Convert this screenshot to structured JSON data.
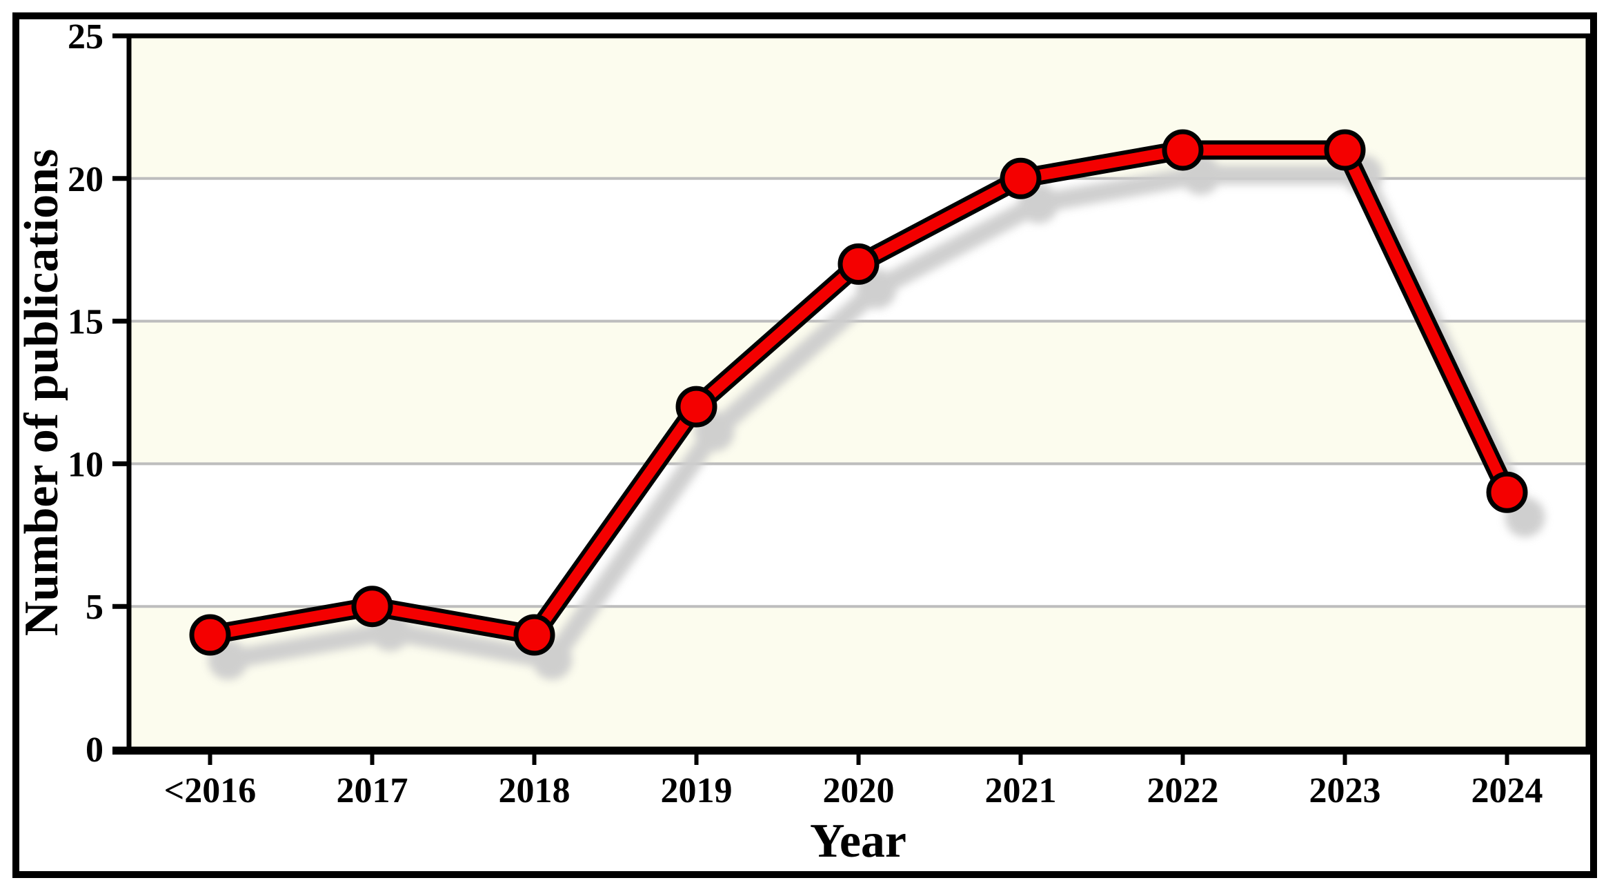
{
  "chart_data": {
    "type": "line",
    "categories": [
      "<2016",
      "2017",
      "2018",
      "2019",
      "2020",
      "2021",
      "2022",
      "2023",
      "2024"
    ],
    "values": [
      4,
      5,
      4,
      12,
      17,
      20,
      21,
      21,
      9
    ],
    "title": "",
    "xlabel": "Year",
    "ylabel": "Number of publications",
    "ylim": [
      0,
      25
    ],
    "yticks": [
      0,
      5,
      10,
      15,
      20,
      25
    ],
    "grid": true,
    "legend_position": "none",
    "band_colors": [
      "#FCFCEE",
      "#FFFFFF"
    ],
    "gridline_color": "#BDBDBD",
    "line_color": "#F40000",
    "line_outline_color": "#000000",
    "marker_color": "#F40000",
    "marker_outline_color": "#000000",
    "shadow_color": "#CDCDCD",
    "frame_color": "#000000",
    "text_color": "#000000"
  }
}
